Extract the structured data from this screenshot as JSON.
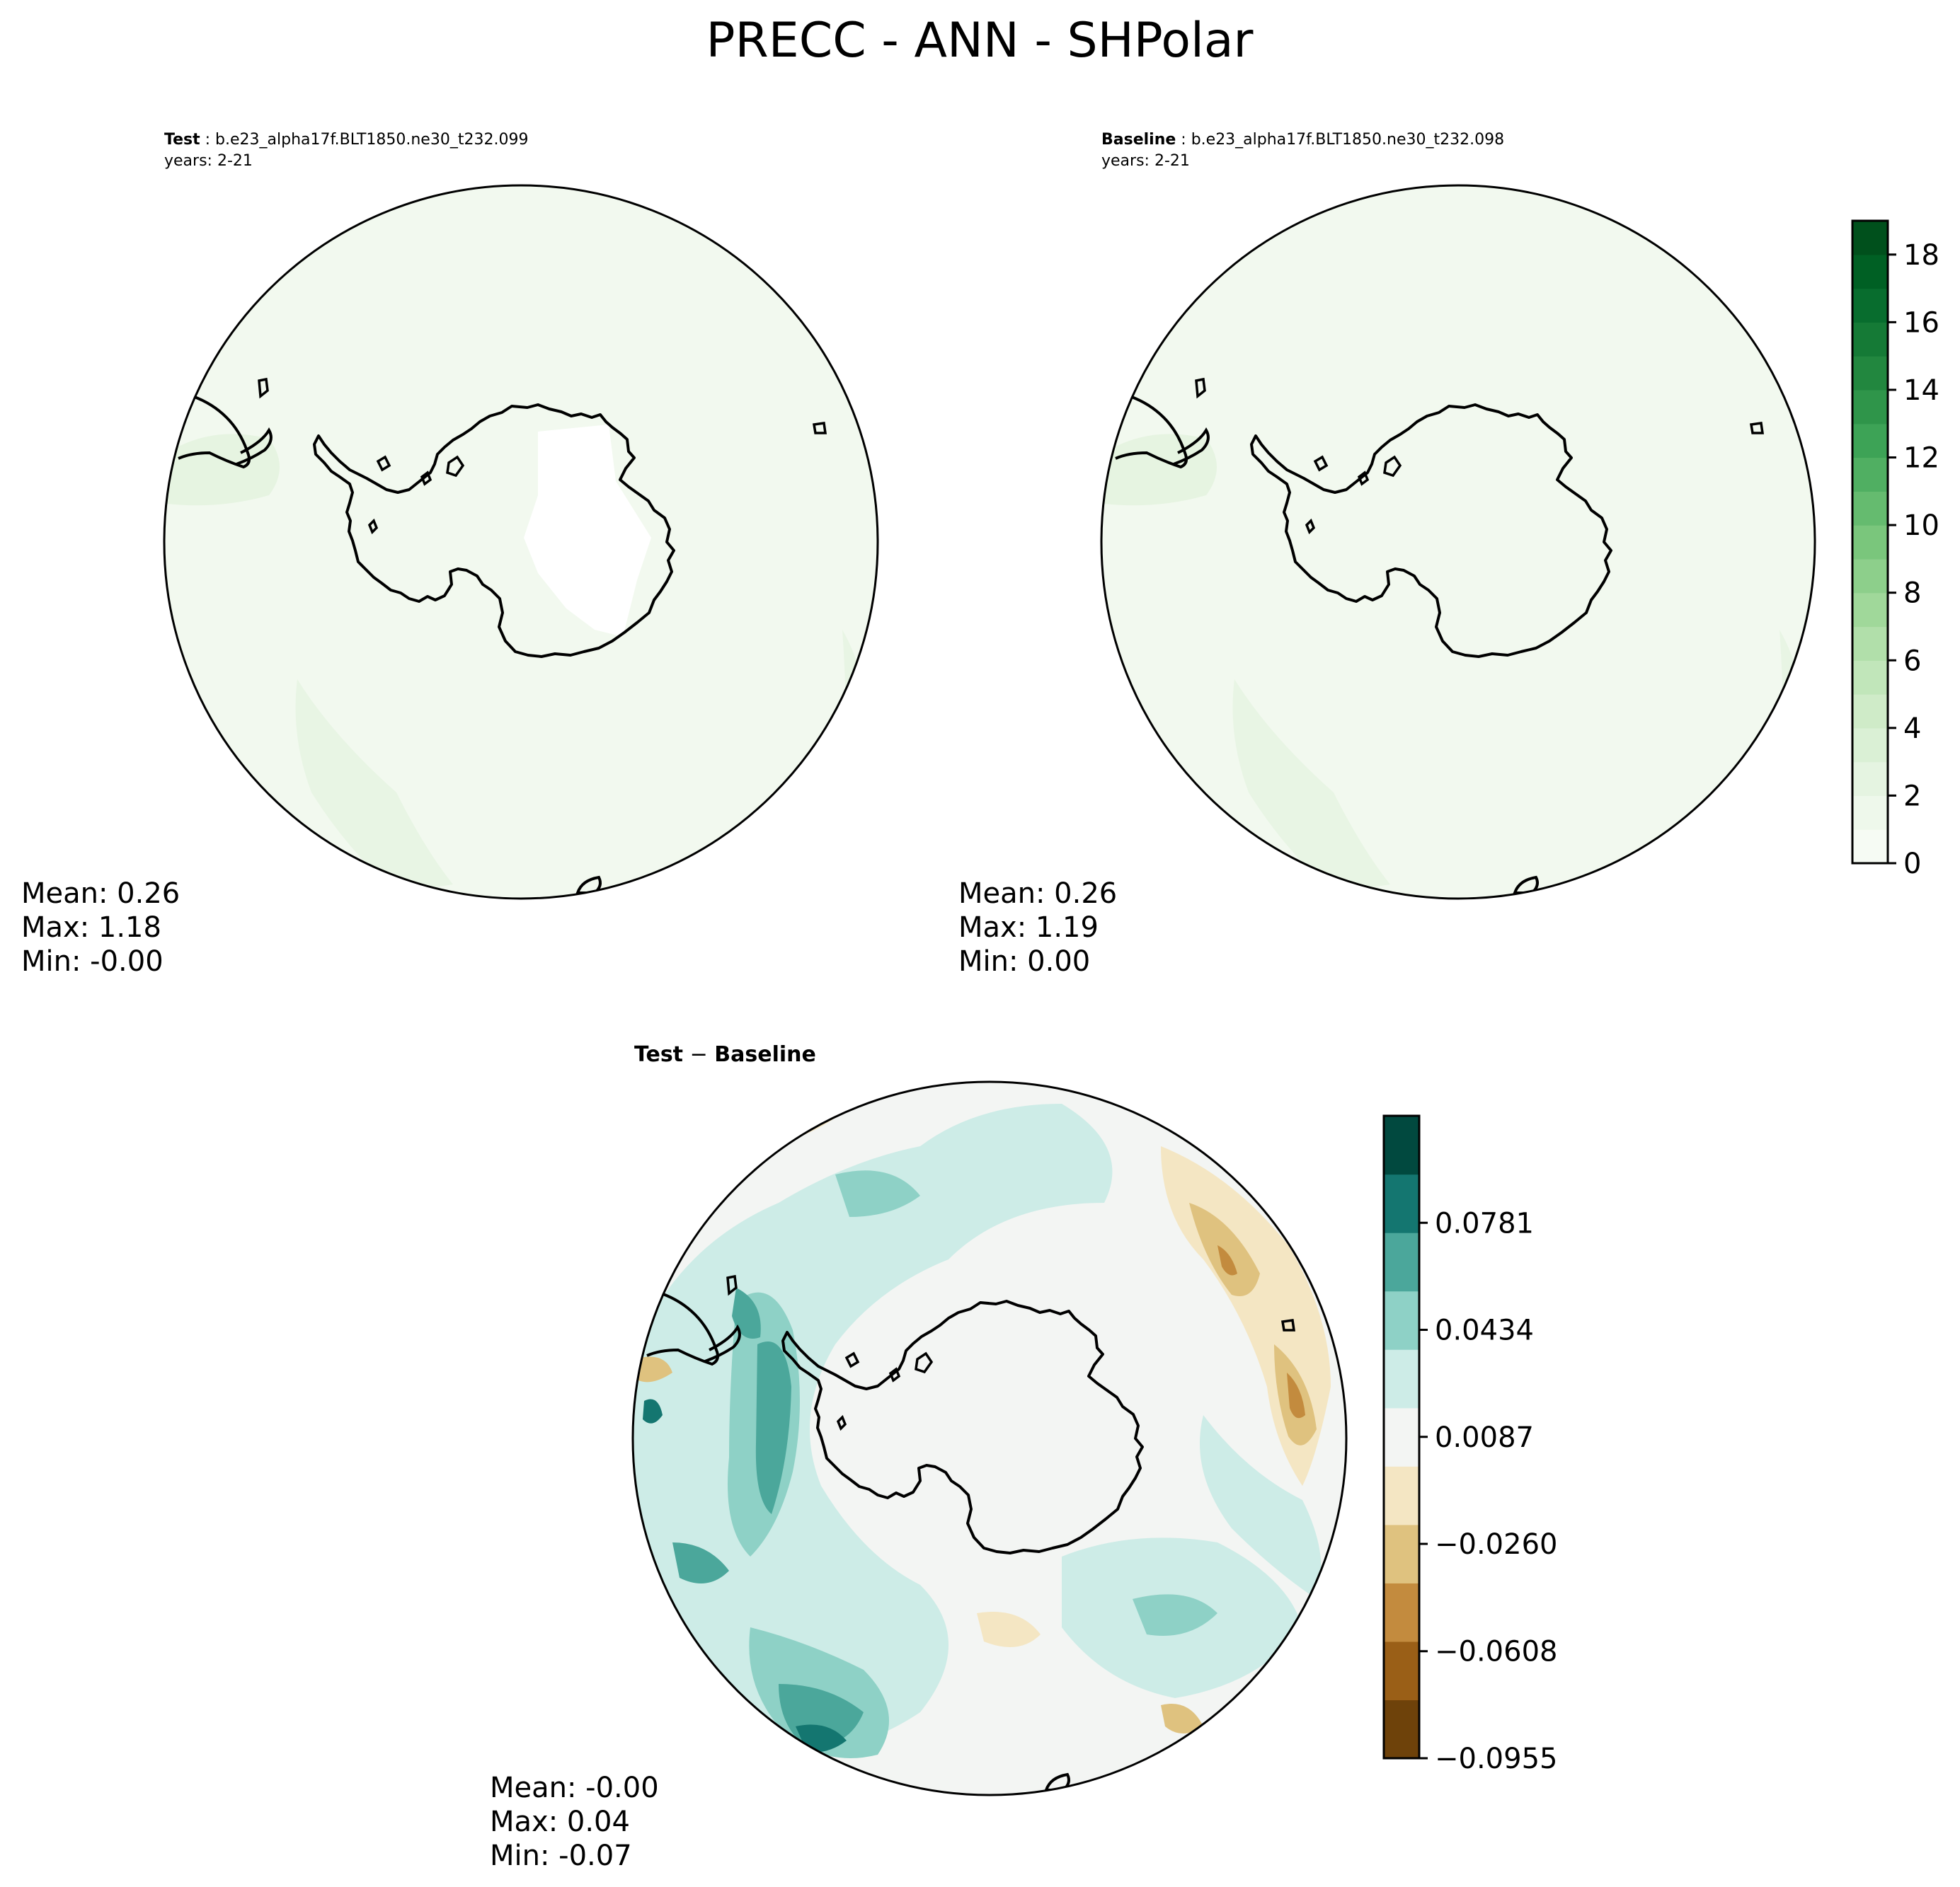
{
  "title": "PRECC - ANN - SHPolar",
  "panels": {
    "test": {
      "label_bold": "Test",
      "label_rest": " : b.e23_alpha17f.BLT1850.ne30_t232.099",
      "years": "years: 2-21",
      "stats": {
        "mean": "Mean:  0.26",
        "max": "Max:  1.18",
        "min": "Min: -0.00"
      }
    },
    "baseline": {
      "label_bold": "Baseline",
      "label_rest": " : b.e23_alpha17f.BLT1850.ne30_t232.098",
      "years": "years: 2-21",
      "stats": {
        "mean": "Mean:  0.26",
        "max": "Max:  1.19",
        "min": "Min:  0.00"
      }
    },
    "diff": {
      "label_left": "Test",
      "label_sep": " − ",
      "label_right": "Baseline",
      "stats": {
        "mean": "Mean: -0.00",
        "max": "Max:  0.04",
        "min": "Min: -0.07"
      }
    }
  },
  "colorbars": {
    "main": {
      "ticks": [
        "0",
        "2",
        "4",
        "6",
        "8",
        "10",
        "12",
        "14",
        "16",
        "18"
      ],
      "colors": [
        "#f6fbf4",
        "#eef8eb",
        "#e5f4e1",
        "#daf0d5",
        "#cfebc8",
        "#c1e6ba",
        "#b1dfaa",
        "#a0d89a",
        "#8dcf8b",
        "#7ac67c",
        "#65bb6f",
        "#50af62",
        "#3da356",
        "#2f954a",
        "#22873f",
        "#157a36",
        "#086d2e",
        "#006024",
        "#00501c"
      ],
      "range": [
        0,
        19
      ]
    },
    "diff": {
      "ticks": [
        "−0.0955",
        "−0.0608",
        "−0.0260",
        "0.0087",
        "0.0434",
        "0.0781"
      ],
      "colors": [
        "#6e420a",
        "#9a5f17",
        "#c38b3e",
        "#dfc27f",
        "#f4e6c3",
        "#f3f5f3",
        "#cdece7",
        "#8ed1c6",
        "#4ba79b",
        "#147670",
        "#01493f"
      ],
      "range": [
        -0.0955,
        0.1128
      ]
    }
  },
  "maps": {
    "ocean_color_main": "#f2f9ef",
    "interior_color_test": "#ffffff",
    "edge_color_main": "#e8f5e4",
    "diff_neutral": "#f3f5f3"
  }
}
